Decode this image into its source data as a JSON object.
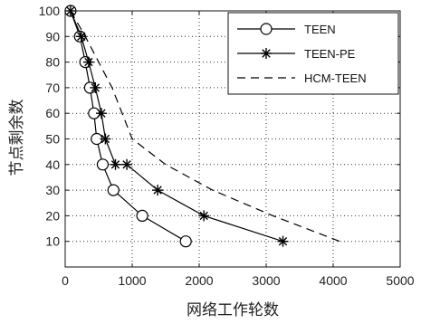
{
  "chart_data": {
    "type": "line",
    "title": "",
    "xlabel": "网络工作轮数",
    "ylabel": "节点剩余数",
    "xlim": [
      0,
      5000
    ],
    "ylim": [
      0,
      100
    ],
    "xticks": [
      0,
      1000,
      2000,
      3000,
      4000,
      5000
    ],
    "yticks": [
      10,
      20,
      30,
      40,
      50,
      60,
      70,
      80,
      90,
      100
    ],
    "grid": true,
    "legend_position": "top-right",
    "series": [
      {
        "name": "TEEN",
        "marker": "circle",
        "line_style": "solid",
        "color": "#000000",
        "x": [
          80,
          220,
          300,
          370,
          430,
          470,
          560,
          720,
          1150,
          1800
        ],
        "y": [
          100,
          90,
          80,
          70,
          60,
          50,
          40,
          30,
          20,
          10
        ]
      },
      {
        "name": "TEEN-PE",
        "marker": "star",
        "line_style": "solid",
        "color": "#000000",
        "x": [
          80,
          240,
          350,
          450,
          540,
          600,
          750,
          920,
          1380,
          2070,
          3250
        ],
        "y": [
          100,
          90,
          80,
          70,
          60,
          50,
          40,
          40,
          30,
          20,
          10
        ]
      },
      {
        "name": "HCM-TEEN",
        "marker": "none",
        "line_style": "dashed",
        "color": "#000000",
        "x": [
          80,
          300,
          500,
          700,
          1000,
          1500,
          2200,
          3100,
          4100
        ],
        "y": [
          100,
          90,
          80,
          70,
          50,
          40,
          30,
          20,
          10
        ]
      }
    ]
  }
}
